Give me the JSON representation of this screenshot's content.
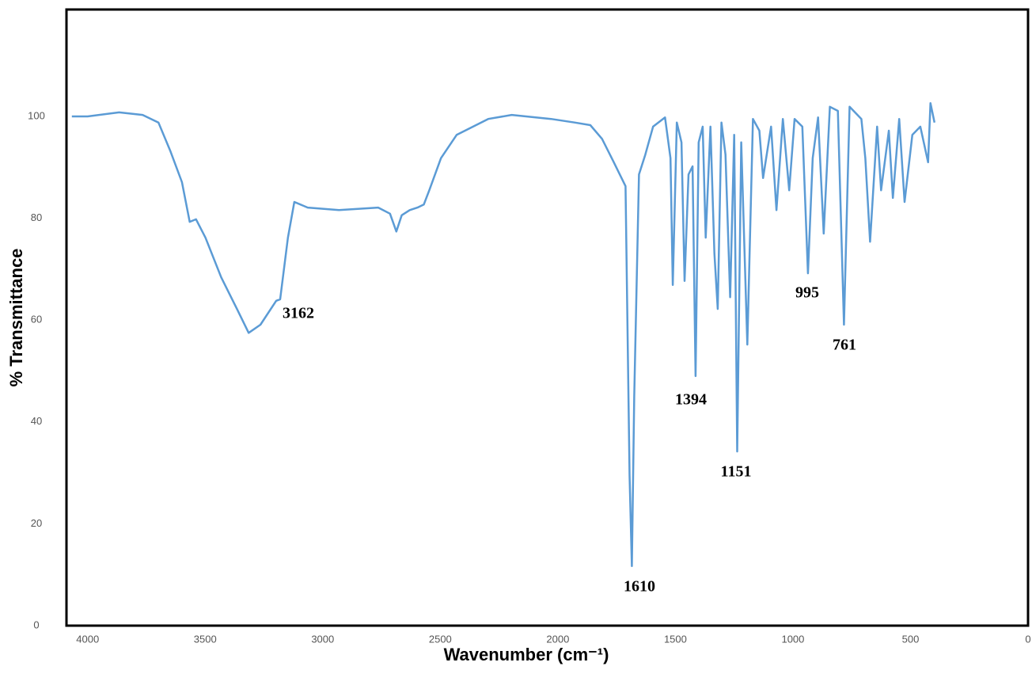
{
  "chart_data": {
    "type": "line",
    "xlabel": "Wavenumber (cm⁻¹)",
    "ylabel": "% Transmittance",
    "color": "#5b9bd5",
    "xlim": [
      4090,
      0
    ],
    "ylim": [
      0,
      121
    ],
    "xticks": [
      4000,
      3500,
      3000,
      2500,
      2000,
      1500,
      1000,
      500,
      0
    ],
    "yticks": [
      0,
      20,
      40,
      60,
      80,
      100
    ],
    "annotations": [
      "3162",
      "1610",
      "1394",
      "1151",
      "995",
      "761"
    ],
    "x": [
      4067,
      4000,
      3866,
      3766,
      3699,
      3649,
      3599,
      3566,
      3539,
      3499,
      3432,
      3365,
      3315,
      3265,
      3198,
      3181,
      3148,
      3121,
      3064,
      2931,
      2764,
      2714,
      2687,
      2664,
      2630,
      2597,
      2570,
      2547,
      2497,
      2430,
      2296,
      2196,
      2029,
      1929,
      1862,
      1812,
      1762,
      1712,
      1695,
      1685,
      1675,
      1655,
      1628,
      1595,
      1544,
      1521,
      1511,
      1494,
      1474,
      1461,
      1444,
      1427,
      1414,
      1401,
      1384,
      1371,
      1351,
      1334,
      1320,
      1304,
      1287,
      1267,
      1250,
      1237,
      1220,
      1194,
      1170,
      1143,
      1127,
      1093,
      1070,
      1043,
      1016,
      993,
      960,
      936,
      916,
      893,
      869,
      843,
      809,
      783,
      759,
      709,
      692,
      672,
      642,
      625,
      592,
      575,
      548,
      525,
      492,
      458,
      425,
      415,
      398
    ],
    "values": [
      100,
      100,
      100.8,
      100.3,
      98.8,
      93.3,
      87.1,
      79.3,
      79.8,
      76.2,
      68.4,
      62.2,
      57.5,
      59.1,
      63.8,
      64.1,
      76.2,
      83.2,
      82.1,
      81.6,
      82.1,
      80.9,
      77.4,
      80.6,
      81.6,
      82.1,
      82.7,
      85.5,
      91.8,
      96.4,
      99.5,
      100.3,
      99.5,
      98.8,
      98.3,
      95.6,
      91,
      86.3,
      29.5,
      11.7,
      45.1,
      88.6,
      92.5,
      98,
      99.8,
      91.8,
      66.9,
      98.8,
      94.9,
      67.7,
      88.6,
      90.2,
      49,
      94.9,
      98,
      76.2,
      98,
      73.1,
      62.2,
      98.8,
      92.5,
      64.5,
      96.4,
      34.2,
      94.9,
      55.2,
      99.5,
      97.2,
      87.9,
      98,
      81.6,
      99.5,
      85.5,
      99.5,
      98,
      69.2,
      91.8,
      99.8,
      77,
      101.9,
      101.1,
      59.1,
      101.9,
      99.5,
      91.8,
      75.4,
      98,
      85.5,
      97.2,
      84,
      99.5,
      83.2,
      96.4,
      98,
      91,
      102.6,
      98.8
    ]
  }
}
